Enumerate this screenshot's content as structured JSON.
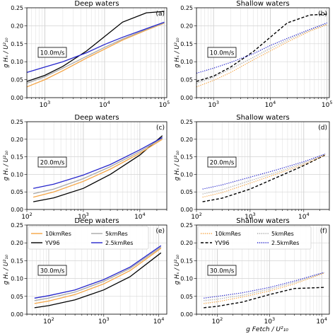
{
  "figure": {
    "xlabel": "g Fetch / U²₁₀",
    "ylabel": "g Hₛ / U²₁₀"
  },
  "colors": {
    "10kmRes": "#f5a545",
    "5kmRes": "#a9a9a9",
    "2.5kmRes": "#2626cc",
    "YV96": "#000000"
  },
  "legend": {
    "location": "top-left",
    "entries": [
      "10kmRes",
      "5kmRes",
      "YV96",
      "2.5kmRes"
    ]
  },
  "chart_data": [
    {
      "type": "line",
      "panel": "(a)",
      "title": "Deep waters",
      "wind_label": "10.0m/s",
      "xscale": "log",
      "xlim": [
        500,
        110000
      ],
      "ylim": [
        0,
        0.25
      ],
      "yticks": [
        "0.00",
        "0.05",
        "0.10",
        "0.15",
        "0.20",
        "0.25"
      ],
      "xticks": [
        1000,
        10000,
        100000
      ],
      "x": [
        500,
        1000,
        2000,
        5000,
        10000,
        20000,
        50000,
        100000
      ],
      "line_style": "solid",
      "series": [
        {
          "name": "10kmRes",
          "values": [
            0.03,
            0.05,
            0.075,
            0.11,
            0.135,
            0.16,
            0.188,
            0.207
          ]
        },
        {
          "name": "5kmRes",
          "values": [
            0.04,
            0.058,
            0.082,
            0.115,
            0.14,
            0.163,
            0.19,
            0.208
          ]
        },
        {
          "name": "2.5kmRes",
          "values": [
            0.07,
            0.085,
            0.1,
            0.125,
            0.148,
            0.168,
            0.192,
            0.21
          ]
        },
        {
          "name": "YV96",
          "values": [
            0.045,
            0.062,
            0.087,
            0.13,
            0.17,
            0.21,
            0.236,
            0.24
          ]
        }
      ]
    },
    {
      "type": "line",
      "panel": "(b)",
      "title": "Shallow waters",
      "wind_label": "10.0m/s",
      "xscale": "log",
      "xlim": [
        500,
        110000
      ],
      "ylim": [
        0,
        0.25
      ],
      "yticks": [
        "0.00",
        "0.05",
        "0.10",
        "0.15",
        "0.20",
        "0.25"
      ],
      "xticks": [
        1000,
        10000,
        100000
      ],
      "x": [
        500,
        1000,
        2000,
        5000,
        10000,
        20000,
        50000,
        100000
      ],
      "line_style": "dashed",
      "series": [
        {
          "name": "10kmRes",
          "values": [
            0.03,
            0.048,
            0.07,
            0.105,
            0.13,
            0.155,
            0.185,
            0.203
          ]
        },
        {
          "name": "5kmRes",
          "values": [
            0.04,
            0.057,
            0.08,
            0.112,
            0.137,
            0.16,
            0.188,
            0.205
          ]
        },
        {
          "name": "2.5kmRes",
          "values": [
            0.068,
            0.082,
            0.098,
            0.122,
            0.145,
            0.165,
            0.19,
            0.208
          ]
        },
        {
          "name": "YV96",
          "values": [
            0.045,
            0.06,
            0.085,
            0.128,
            0.168,
            0.208,
            0.23,
            0.232
          ]
        }
      ]
    },
    {
      "type": "line",
      "panel": "(c)",
      "title": "Deep waters",
      "wind_label": "20.0m/s",
      "xscale": "log",
      "xlim": [
        100,
        30000
      ],
      "ylim": [
        0,
        0.25
      ],
      "yticks": [
        "0.00",
        "0.05",
        "0.10",
        "0.15",
        "0.20",
        "0.25"
      ],
      "xticks": [
        100,
        1000,
        10000
      ],
      "x": [
        130,
        300,
        1000,
        3000,
        10000,
        25000
      ],
      "line_style": "solid",
      "series": [
        {
          "name": "10kmRes",
          "values": [
            0.035,
            0.05,
            0.08,
            0.115,
            0.16,
            0.2
          ]
        },
        {
          "name": "5kmRes",
          "values": [
            0.045,
            0.058,
            0.088,
            0.122,
            0.165,
            0.203
          ]
        },
        {
          "name": "2.5kmRes",
          "values": [
            0.06,
            0.072,
            0.098,
            0.128,
            0.17,
            0.205
          ]
        },
        {
          "name": "YV96",
          "values": [
            0.022,
            0.033,
            0.06,
            0.1,
            0.155,
            0.21
          ]
        }
      ]
    },
    {
      "type": "line",
      "panel": "(d)",
      "title": "Shallow waters",
      "wind_label": "20.0m/s",
      "xscale": "log",
      "xlim": [
        100,
        30000
      ],
      "ylim": [
        0,
        0.25
      ],
      "yticks": [
        "0.00",
        "0.05",
        "0.10",
        "0.15",
        "0.20",
        "0.25"
      ],
      "xticks": [
        100,
        1000,
        10000
      ],
      "x": [
        130,
        300,
        1000,
        3000,
        10000,
        25000
      ],
      "line_style": "dashed",
      "series": [
        {
          "name": "10kmRes",
          "values": [
            0.035,
            0.048,
            0.075,
            0.1,
            0.128,
            0.155
          ]
        },
        {
          "name": "5kmRes",
          "values": [
            0.044,
            0.056,
            0.082,
            0.105,
            0.132,
            0.157
          ]
        },
        {
          "name": "2.5kmRes",
          "values": [
            0.058,
            0.07,
            0.092,
            0.112,
            0.136,
            0.158
          ]
        },
        {
          "name": "YV96",
          "values": [
            0.022,
            0.032,
            0.058,
            0.09,
            0.125,
            0.155
          ]
        }
      ]
    },
    {
      "type": "line",
      "panel": "(e)",
      "title": "Deep waters",
      "wind_label": "30.0m/s",
      "xscale": "log",
      "xlim": [
        40,
        14000
      ],
      "ylim": [
        0,
        0.25
      ],
      "yticks": [
        "0.00",
        "0.05",
        "0.10",
        "0.15",
        "0.20",
        "0.25"
      ],
      "xticks": [
        100,
        1000,
        10000
      ],
      "x": [
        55,
        100,
        300,
        1000,
        3000,
        11000
      ],
      "line_style": "solid",
      "series": [
        {
          "name": "10kmRes",
          "values": [
            0.03,
            0.037,
            0.055,
            0.085,
            0.122,
            0.185
          ]
        },
        {
          "name": "5kmRes",
          "values": [
            0.038,
            0.045,
            0.062,
            0.092,
            0.128,
            0.188
          ]
        },
        {
          "name": "2.5kmRes",
          "values": [
            0.045,
            0.052,
            0.068,
            0.097,
            0.132,
            0.192
          ]
        },
        {
          "name": "YV96",
          "values": [
            0.018,
            0.024,
            0.04,
            0.068,
            0.105,
            0.172
          ]
        }
      ]
    },
    {
      "type": "line",
      "panel": "(f)",
      "title": "Shallow waters",
      "wind_label": "30.0m/s",
      "xscale": "log",
      "xlim": [
        40,
        14000
      ],
      "ylim": [
        0,
        0.25
      ],
      "yticks": [
        "0.00",
        "0.05",
        "0.10",
        "0.15",
        "0.20",
        "0.25"
      ],
      "xticks": [
        100,
        1000,
        10000
      ],
      "x": [
        55,
        100,
        300,
        1000,
        3000,
        11000
      ],
      "line_style": "dashed",
      "series": [
        {
          "name": "10kmRes",
          "values": [
            0.03,
            0.035,
            0.048,
            0.065,
            0.085,
            0.115
          ]
        },
        {
          "name": "5kmRes",
          "values": [
            0.038,
            0.042,
            0.053,
            0.07,
            0.089,
            0.116
          ]
        },
        {
          "name": "2.5kmRes",
          "values": [
            0.045,
            0.05,
            0.06,
            0.075,
            0.093,
            0.117
          ]
        },
        {
          "name": "YV96",
          "values": [
            0.018,
            0.022,
            0.034,
            0.055,
            0.072,
            0.075
          ]
        }
      ]
    }
  ]
}
